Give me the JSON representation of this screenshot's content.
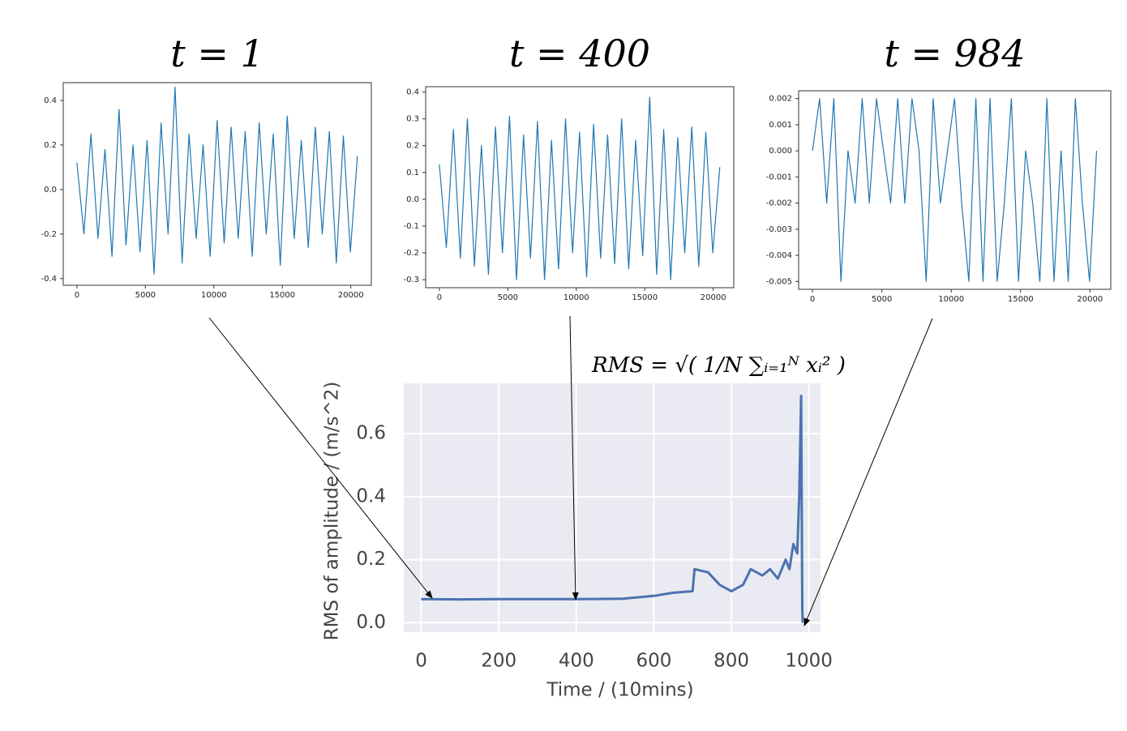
{
  "chart_data": [
    {
      "type": "line",
      "title": "t = 1",
      "color": "#1f77b4",
      "x": [
        0,
        512,
        1024,
        1536,
        2048,
        2560,
        3072,
        3584,
        4096,
        4608,
        5120,
        5632,
        6144,
        6656,
        7168,
        7680,
        8192,
        8704,
        9216,
        9728,
        10240,
        10752,
        11264,
        11776,
        12288,
        12800,
        13312,
        13824,
        14336,
        14848,
        15360,
        15872,
        16384,
        16896,
        17408,
        17920,
        18432,
        18944,
        19456,
        19968,
        20480
      ],
      "values": [
        0.12,
        -0.2,
        0.25,
        -0.22,
        0.18,
        -0.3,
        0.36,
        -0.25,
        0.2,
        -0.28,
        0.22,
        -0.38,
        0.3,
        -0.2,
        0.46,
        -0.33,
        0.25,
        -0.22,
        0.2,
        -0.3,
        0.31,
        -0.24,
        0.28,
        -0.22,
        0.26,
        -0.3,
        0.3,
        -0.2,
        0.25,
        -0.34,
        0.33,
        -0.22,
        0.22,
        -0.26,
        0.28,
        -0.2,
        0.26,
        -0.33,
        0.24,
        -0.28,
        0.15
      ],
      "xlim": [
        -1000,
        21500
      ],
      "ylim": [
        -0.43,
        0.48
      ],
      "xticks": [
        0,
        5000,
        10000,
        15000,
        20000
      ],
      "yticks": [
        -0.4,
        -0.2,
        {
          "value": 0,
          "label": "0.0"
        },
        0.2,
        0.4
      ]
    },
    {
      "type": "line",
      "title": "t = 400",
      "color": "#1f77b4",
      "x": [
        0,
        512,
        1024,
        1536,
        2048,
        2560,
        3072,
        3584,
        4096,
        4608,
        5120,
        5632,
        6144,
        6656,
        7168,
        7680,
        8192,
        8704,
        9216,
        9728,
        10240,
        10752,
        11264,
        11776,
        12288,
        12800,
        13312,
        13824,
        14336,
        14848,
        15360,
        15872,
        16384,
        16896,
        17408,
        17920,
        18432,
        18944,
        19456,
        19968,
        20480
      ],
      "values": [
        0.13,
        -0.18,
        0.26,
        -0.22,
        0.3,
        -0.25,
        0.2,
        -0.28,
        0.27,
        -0.2,
        0.31,
        -0.3,
        0.24,
        -0.22,
        0.29,
        -0.3,
        0.22,
        -0.26,
        0.3,
        -0.2,
        0.25,
        -0.29,
        0.28,
        -0.22,
        0.24,
        -0.24,
        0.3,
        -0.26,
        0.22,
        -0.21,
        0.38,
        -0.28,
        0.26,
        -0.3,
        0.23,
        -0.2,
        0.27,
        -0.25,
        0.25,
        -0.2,
        0.12
      ],
      "xlim": [
        -1000,
        21500
      ],
      "ylim": [
        -0.33,
        0.42
      ],
      "xticks": [
        0,
        5000,
        10000,
        15000,
        20000
      ],
      "yticks": [
        -0.3,
        -0.2,
        -0.1,
        {
          "value": 0,
          "label": "0.0"
        },
        0.1,
        0.2,
        0.3,
        0.4
      ]
    },
    {
      "type": "line",
      "title": "t = 984",
      "color": "#1f77b4",
      "x": [
        0,
        512,
        1024,
        1536,
        2048,
        2560,
        3072,
        3584,
        4096,
        4608,
        5120,
        5632,
        6144,
        6656,
        7168,
        7680,
        8192,
        8704,
        9216,
        9728,
        10240,
        10752,
        11264,
        11776,
        12288,
        12800,
        13312,
        13824,
        14336,
        14848,
        15360,
        15872,
        16384,
        16896,
        17408,
        17920,
        18432,
        18944,
        19456,
        19968,
        20480
      ],
      "values": [
        0,
        0.002,
        -0.002,
        0.002,
        -0.005,
        0,
        -0.002,
        0.002,
        -0.002,
        0.002,
        0,
        -0.002,
        0.002,
        -0.002,
        0.002,
        0,
        -0.005,
        0.002,
        -0.002,
        0,
        0.002,
        -0.002,
        -0.005,
        0.002,
        -0.005,
        0.002,
        -0.005,
        -0.002,
        0.002,
        -0.005,
        0,
        -0.002,
        -0.005,
        0.002,
        -0.005,
        0,
        -0.005,
        0.002,
        -0.002,
        -0.005,
        0
      ],
      "xlim": [
        -1000,
        21500
      ],
      "ylim": [
        -0.0053,
        0.0023
      ],
      "xticks": [
        0,
        5000,
        10000,
        15000,
        20000
      ],
      "yticks": [
        -0.005,
        -0.004,
        -0.003,
        -0.002,
        -0.001,
        {
          "value": 0,
          "label": "0.000"
        },
        0.001,
        0.002
      ]
    },
    {
      "type": "line",
      "color": "#4c72b0",
      "grid": true,
      "annotation": "RMS = √( 1/N ∑ᵢ₌₁ᴺ xᵢ² )",
      "xlabel": "Time / (10mins)",
      "ylabel": "RMS of amplitude / (m/s^2)",
      "x": [
        0,
        100,
        200,
        300,
        400,
        520,
        600,
        650,
        700,
        705,
        740,
        770,
        800,
        830,
        850,
        880,
        900,
        920,
        940,
        950,
        960,
        970,
        975,
        980,
        983,
        984
      ],
      "values": [
        0.075,
        0.074,
        0.075,
        0.075,
        0.075,
        0.076,
        0.085,
        0.095,
        0.1,
        0.17,
        0.16,
        0.12,
        0.1,
        0.12,
        0.17,
        0.15,
        0.17,
        0.14,
        0.2,
        0.17,
        0.25,
        0.22,
        0.4,
        0.72,
        0.05,
        0.0
      ],
      "xlim": [
        -45,
        1030
      ],
      "ylim": [
        -0.03,
        0.76
      ],
      "xticks": [
        0,
        200,
        400,
        600,
        800,
        1000
      ],
      "yticks": [
        {
          "value": 0,
          "label": "0.0"
        },
        0.2,
        0.4,
        0.6
      ]
    }
  ]
}
